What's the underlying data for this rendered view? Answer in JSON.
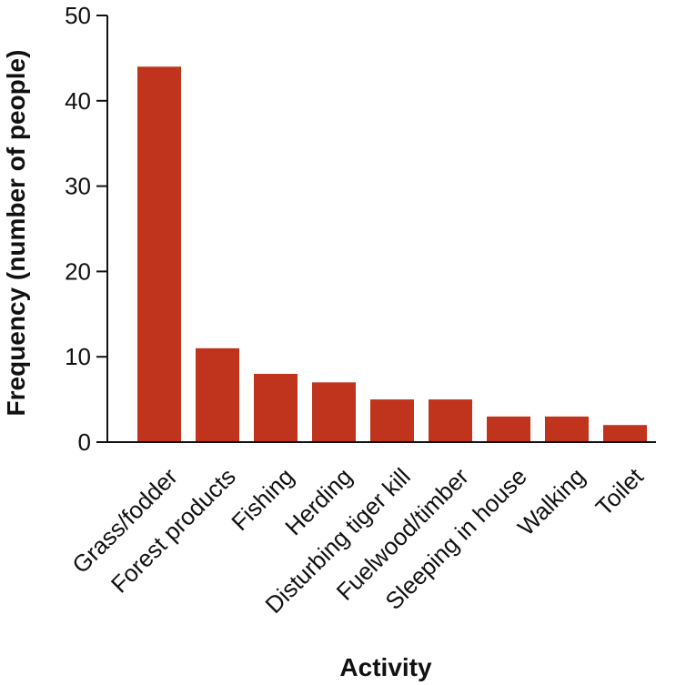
{
  "chart_data": {
    "type": "bar",
    "categories": [
      "Grass/fodder",
      "Forest products",
      "Fishing",
      "Herding",
      "Disturbing tiger kill",
      "Fuelwood/timber",
      "Sleeping in house",
      "Walking",
      "Toilet"
    ],
    "values": [
      44,
      11,
      8,
      7,
      5,
      5,
      3,
      3,
      2
    ],
    "xlabel": "Activity",
    "ylabel": "Frequency (number of people)",
    "ylim": [
      0,
      50
    ],
    "yticks": [
      0,
      10,
      20,
      30,
      40,
      50
    ],
    "grid": false,
    "bar_color": "#c0331c",
    "axis_color": "#111111"
  }
}
